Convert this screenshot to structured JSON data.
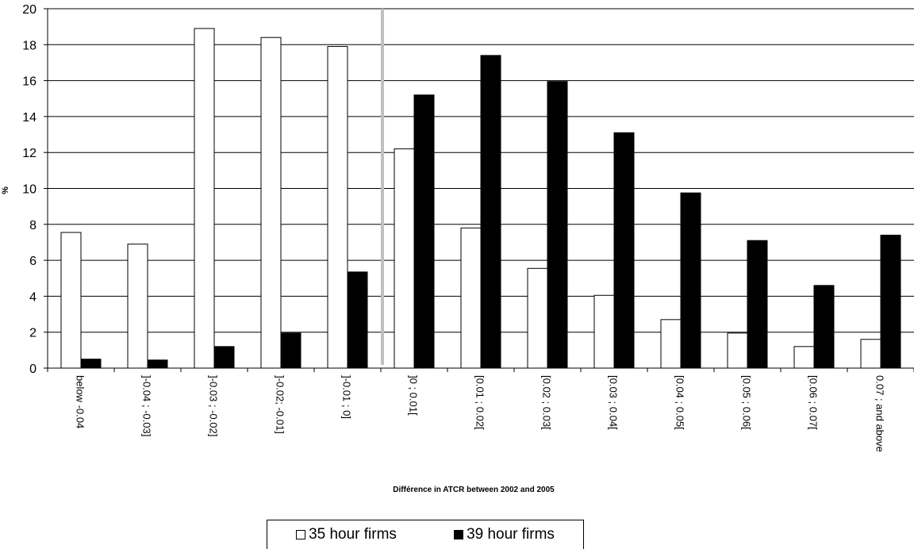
{
  "chart_data": {
    "type": "bar",
    "title": "",
    "xlabel": "Différence in ATCR between 2002 and 2005",
    "ylabel": "%",
    "ylim": [
      0,
      20
    ],
    "yticks": [
      "0",
      "2",
      "4",
      "6",
      "8",
      "10",
      "12",
      "14",
      "16",
      "18",
      "20"
    ],
    "grid": true,
    "legend_position": "bottom",
    "categories": [
      "below -0.04",
      "]-0.04 ; -0.03]",
      "]-0.03 ; -0.02]",
      "]-0.02; -0.01]",
      "]-0.01 ; 0]",
      "]0 ; 0.01[",
      "[0.01 ; 0.02[",
      "[0.02 ; 0.03[",
      "[0.03 ; 0.04[",
      "[0.04 ; 0.05[",
      "[0.05 ; 0.06[",
      "[0.06 ; 0.07[",
      "0.07 ; and above"
    ],
    "series": [
      {
        "name": "35 hour firms",
        "color": "#ffffff",
        "values": [
          7.55,
          6.9,
          18.9,
          18.4,
          17.9,
          12.2,
          7.8,
          5.55,
          4.05,
          2.7,
          1.95,
          1.2,
          1.6
        ]
      },
      {
        "name": "39 hour firms",
        "color": "#000000",
        "values": [
          0.5,
          0.45,
          1.2,
          1.95,
          5.35,
          15.2,
          17.4,
          15.95,
          13.1,
          9.75,
          7.1,
          4.6,
          7.4
        ]
      }
    ],
    "divider_after_category": 5,
    "divider_color": "#c0c0c0"
  }
}
